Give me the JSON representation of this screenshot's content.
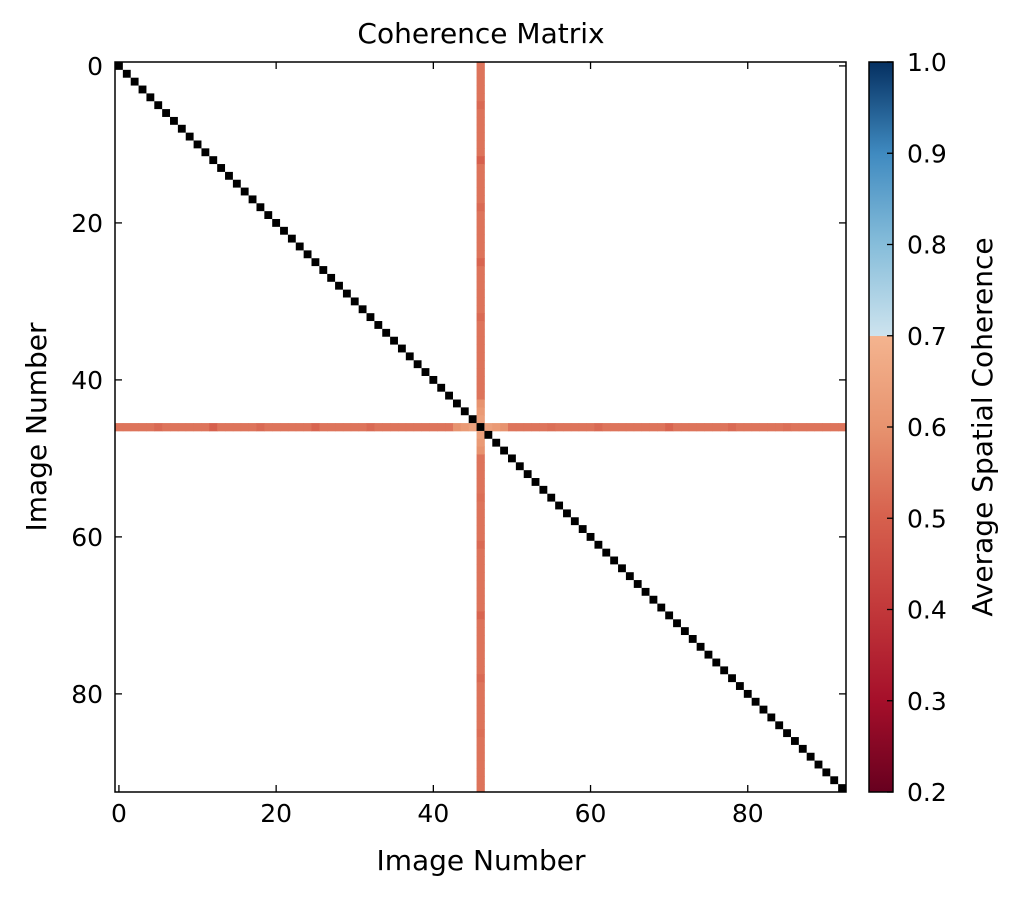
{
  "chart_data": {
    "type": "heatmap",
    "title": "Coherence Matrix",
    "xlabel": "Image Number",
    "ylabel": "Image Number",
    "colorbar_label": "Average Spatial Coherence",
    "n_images": 93,
    "xlim": [
      -0.5,
      92.5
    ],
    "ylim": [
      92.5,
      -0.5
    ],
    "x_ticks": [
      0,
      20,
      40,
      60,
      80
    ],
    "y_ticks": [
      0,
      20,
      40,
      60,
      80
    ],
    "x_tick_labels": [
      "0",
      "20",
      "40",
      "60",
      "80"
    ],
    "y_tick_labels": [
      "0",
      "20",
      "40",
      "60",
      "80"
    ],
    "colorbar_range": [
      0.2,
      1.0
    ],
    "colorbar_ticks": [
      0.2,
      0.3,
      0.4,
      0.5,
      0.6,
      0.7,
      0.8,
      0.9,
      1.0
    ],
    "colorbar_tick_labels": [
      "0.2",
      "0.3",
      "0.4",
      "0.5",
      "0.6",
      "0.7",
      "0.8",
      "0.9",
      "1.0"
    ],
    "colormap": {
      "stops": [
        [
          0.2,
          "#67001f"
        ],
        [
          0.3,
          "#a50f2a"
        ],
        [
          0.4,
          "#c2383a"
        ],
        [
          0.5,
          "#d6604d"
        ],
        [
          0.6,
          "#e7936f"
        ],
        [
          0.7,
          "#f4b48f"
        ],
        [
          0.7,
          "#cde3ee"
        ],
        [
          0.8,
          "#86bdda"
        ],
        [
          0.9,
          "#3f8ac0"
        ],
        [
          1.0,
          "#053061"
        ]
      ]
    },
    "diagonal_color": "#000000",
    "background_color": "#ffffff",
    "highlighted_image": 46,
    "highlight_base_value": 0.54,
    "highlight_values": {
      "43": 0.6,
      "44": 0.62,
      "45": 0.64,
      "47": 0.64,
      "48": 0.62,
      "49": 0.6,
      "5": 0.52,
      "12": 0.5,
      "18": 0.52,
      "25": 0.51,
      "32": 0.52,
      "55": 0.53,
      "61": 0.52,
      "70": 0.51,
      "78": 0.52,
      "85": 0.53
    }
  }
}
